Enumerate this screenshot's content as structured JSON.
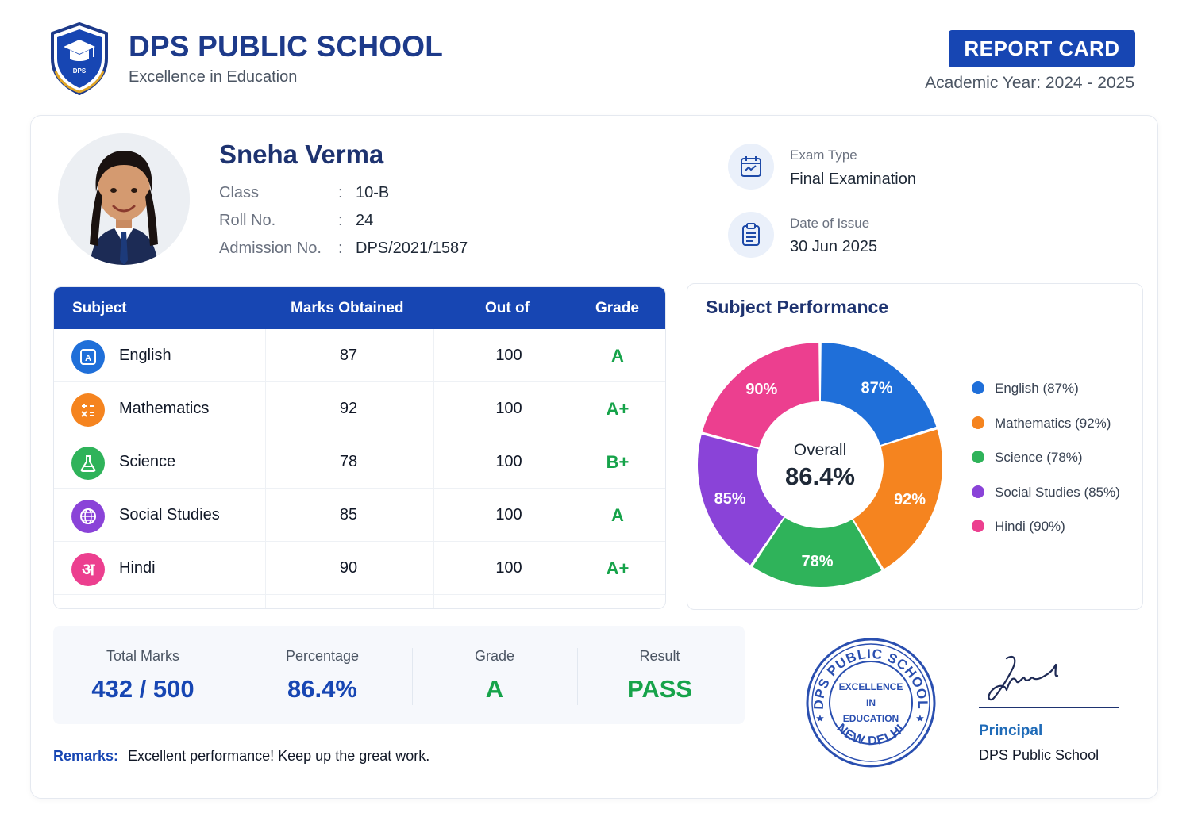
{
  "school": {
    "name": "DPS PUBLIC SCHOOL",
    "tagline": "Excellence in Education",
    "logo_text": "DPS"
  },
  "report": {
    "badge": "REPORT CARD",
    "academic_year": "Academic Year: 2024 - 2025"
  },
  "student": {
    "name": "Sneha Verma",
    "fields": [
      {
        "label": "Class",
        "value": "10-B"
      },
      {
        "label": "Roll No.",
        "value": "24"
      },
      {
        "label": "Admission No.",
        "value": "DPS/2021/1587"
      }
    ]
  },
  "exam": {
    "type_label": "Exam Type",
    "type_value": "Final Examination",
    "date_label": "Date of Issue",
    "date_value": "30 Jun 2025"
  },
  "table": {
    "headers": [
      "Subject",
      "Marks Obtained",
      "Out of",
      "Grade"
    ],
    "rows": [
      {
        "subject": "English",
        "marks": "87",
        "out_of": "100",
        "grade": "A",
        "icon": "book-icon",
        "color": "#1f6fd9"
      },
      {
        "subject": "Mathematics",
        "marks": "92",
        "out_of": "100",
        "grade": "A+",
        "icon": "calculator-icon",
        "color": "#f5841f"
      },
      {
        "subject": "Science",
        "marks": "78",
        "out_of": "100",
        "grade": "B+",
        "icon": "flask-icon",
        "color": "#2fb35a"
      },
      {
        "subject": "Social Studies",
        "marks": "85",
        "out_of": "100",
        "grade": "A",
        "icon": "globe-icon",
        "color": "#8a43d8"
      },
      {
        "subject": "Hindi",
        "marks": "90",
        "out_of": "100",
        "grade": "A+",
        "icon": "hindi-letter-icon",
        "icon_glyph": "अ",
        "color": "#ec3f8f"
      }
    ]
  },
  "chart_data": {
    "type": "pie",
    "title": "Subject Performance",
    "center_label": "Overall",
    "center_value": "86.4%",
    "categories": [
      "English",
      "Mathematics",
      "Science",
      "Social Studies",
      "Hindi"
    ],
    "values": [
      87,
      92,
      78,
      85,
      90
    ],
    "slice_labels": [
      "87%",
      "92%",
      "78%",
      "85%",
      "90%"
    ],
    "colors": [
      "#1f6fd9",
      "#f5841f",
      "#2fb35a",
      "#8a43d8",
      "#ec3f8f"
    ],
    "legend": [
      "English (87%)",
      "Mathematics (92%)",
      "Science (78%)",
      "Social Studies (85%)",
      "Hindi (90%)"
    ],
    "legend_position": "right"
  },
  "summary": {
    "total_label": "Total Marks",
    "total_value": "432 / 500",
    "percentage_label": "Percentage",
    "percentage_value": "86.4%",
    "grade_label": "Grade",
    "grade_value": "A",
    "result_label": "Result",
    "result_value": "PASS"
  },
  "remarks": {
    "label": "Remarks:",
    "text": "Excellent performance! Keep up the great work."
  },
  "stamp": {
    "top_text": "DPS PUBLIC SCHOOL",
    "center_line1": "EXCELLENCE",
    "center_line2": "IN",
    "center_line3": "EDUCATION",
    "bottom_text": "NEW DELHI"
  },
  "signature": {
    "title": "Principal",
    "school": "DPS Public School"
  },
  "colors": {
    "primary": "#1746b3",
    "heading": "#1e3370",
    "pass": "#16a34a"
  }
}
